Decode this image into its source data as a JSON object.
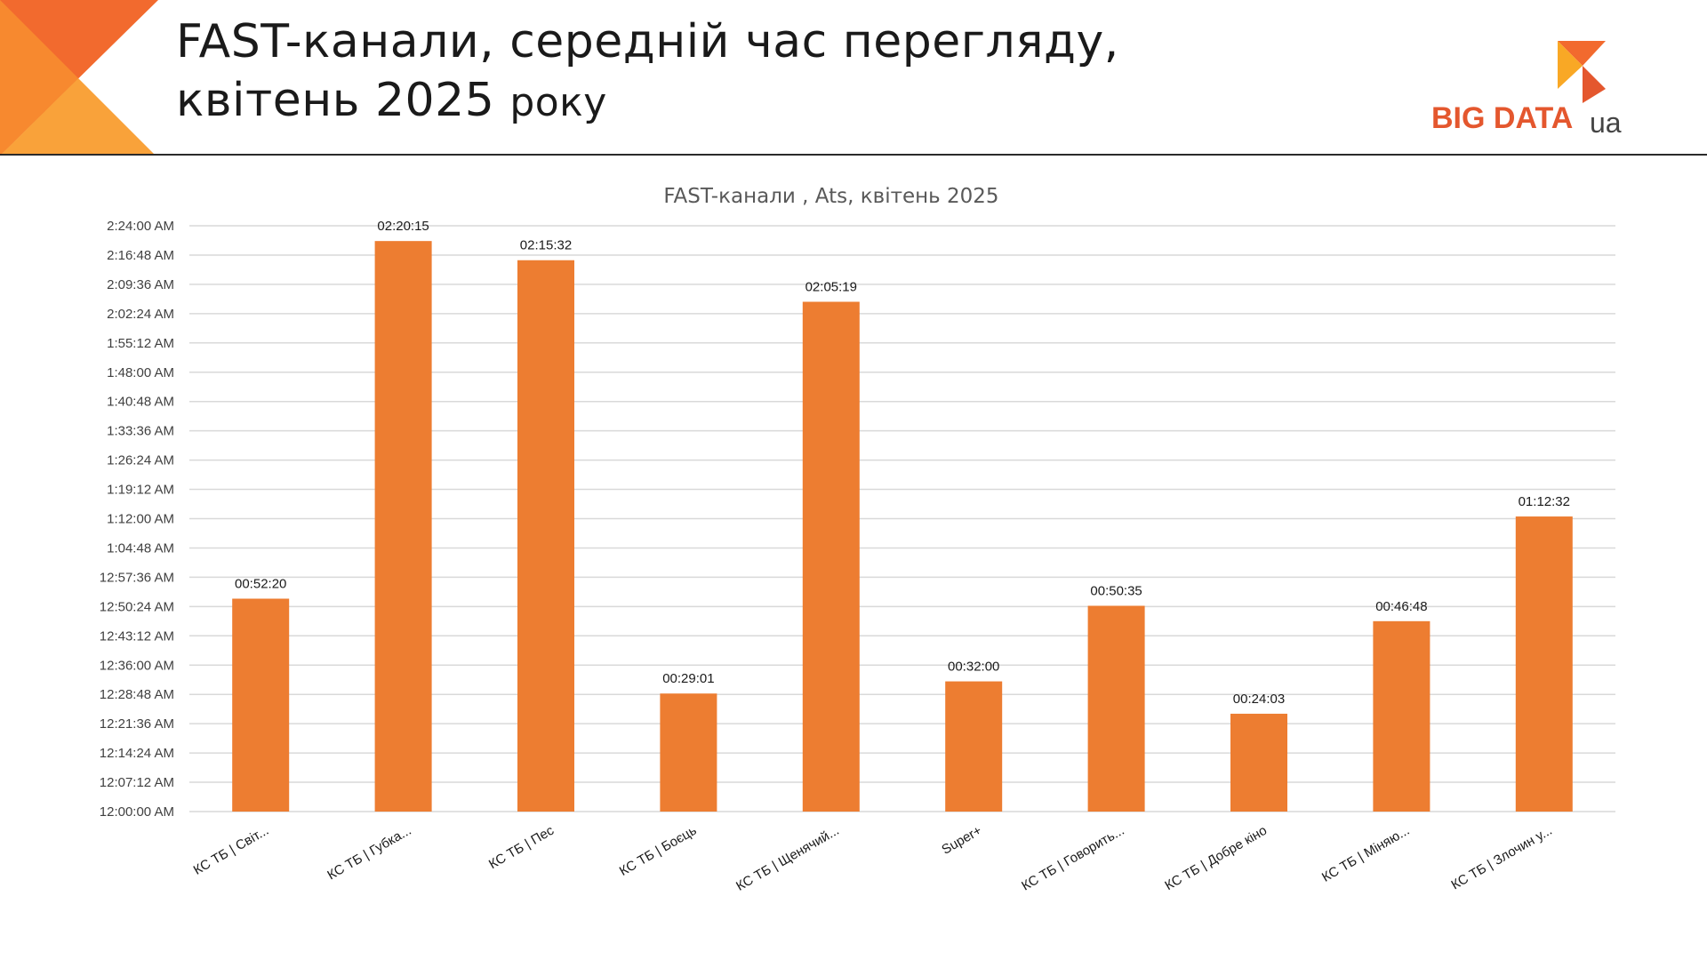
{
  "header": {
    "title_line1": "FAST-канали, середній час перегляду,",
    "title_line2": "квітень 2025",
    "title_line2_suffix": "року"
  },
  "logo": {
    "text": "BIG DATA",
    "suffix": "ua"
  },
  "colors": {
    "bar": "#ed7d31",
    "grid": "#d9d9d9",
    "logo_orange": "#e4572e",
    "logo_yellow": "#f9a825",
    "corner_dark": "#f26a2e",
    "corner_light": "#f9a23a"
  },
  "chart_data": {
    "type": "bar",
    "title": "FAST-канали , Ats, квітень 2025",
    "xlabel": "",
    "ylabel": "",
    "grid": true,
    "ylim_seconds": [
      0,
      8640
    ],
    "y_tick_labels": [
      "12:00:00 AM",
      "12:07:12 AM",
      "12:14:24 AM",
      "12:21:36 AM",
      "12:28:48 AM",
      "12:36:00 AM",
      "12:43:12 AM",
      "12:50:24 AM",
      "12:57:36 AM",
      "1:04:48 AM",
      "1:12:00 AM",
      "1:19:12 AM",
      "1:26:24 AM",
      "1:33:36 AM",
      "1:40:48 AM",
      "1:48:00 AM",
      "1:55:12 AM",
      "2:02:24 AM",
      "2:09:36 AM",
      "2:16:48 AM",
      "2:24:00 AM"
    ],
    "categories": [
      "КС ТБ | Світ...",
      "КС ТБ | Губка...",
      "КС ТБ | Пес",
      "КС ТБ | Боєць",
      "КС ТБ | Щенячий...",
      "Super+",
      "КС ТБ | Говорить...",
      "КС ТБ | Добре кіно",
      "КС ТБ | Міняю...",
      "КС ТБ | Злочин у..."
    ],
    "values": [
      "00:52:20",
      "02:20:15",
      "02:15:32",
      "00:29:01",
      "02:05:19",
      "00:32:00",
      "00:50:35",
      "00:24:03",
      "00:46:48",
      "01:12:32"
    ],
    "values_seconds": [
      3140,
      8415,
      8132,
      1741,
      7519,
      1920,
      3035,
      1443,
      2808,
      4352
    ]
  }
}
